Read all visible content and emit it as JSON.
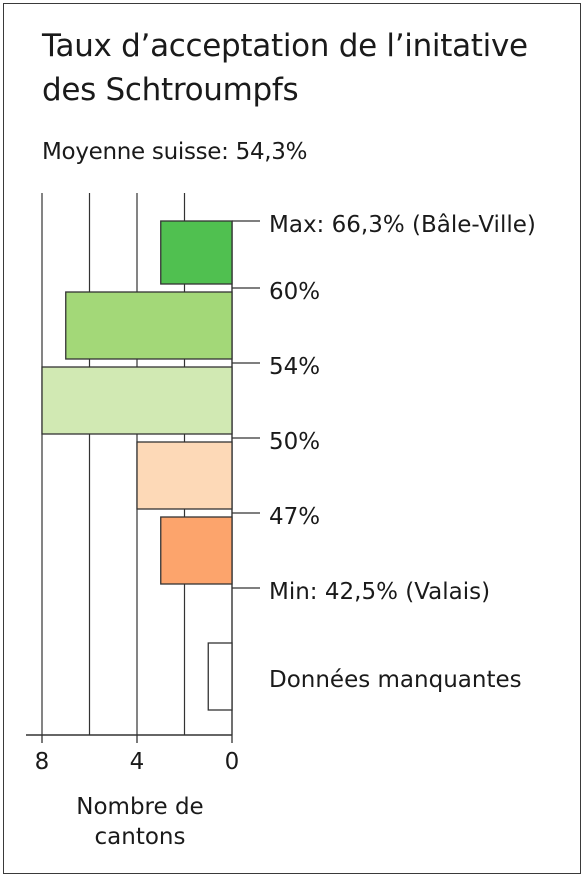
{
  "chart_data": {
    "type": "bar",
    "orientation": "horizontal",
    "title_lines": [
      "Taux d’acceptation de l’initative",
      "des Schtroumpfs"
    ],
    "subtitle": "Moyenne suisse: 54,3%",
    "xlabel_lines": [
      "Nombre de",
      "cantons"
    ],
    "x_ticks": [
      {
        "value": 8,
        "label": "8"
      },
      {
        "value": 4,
        "label": "4"
      },
      {
        "value": 0,
        "label": "0"
      }
    ],
    "xlim": [
      0,
      8
    ],
    "x_direction": "right-to-left",
    "grid": true,
    "boundary_labels": [
      "Max: 66,3% (Bâle-Ville)",
      "60%",
      "54%",
      "50%",
      "47%",
      "Min: 42,5% (Valais)"
    ],
    "categories": [
      "60% – 66,3%",
      "54% – 60%",
      "50% – 54%",
      "47% – 50%",
      "42,5% – 47%",
      "Données manquantes"
    ],
    "values": [
      3,
      7,
      8,
      4,
      3,
      1
    ],
    "colors": [
      "#50c050",
      "#a3d878",
      "#d1e9b3",
      "#fdd9b7",
      "#fca46c",
      "#ffffff"
    ],
    "missing_label": "Données manquantes"
  }
}
